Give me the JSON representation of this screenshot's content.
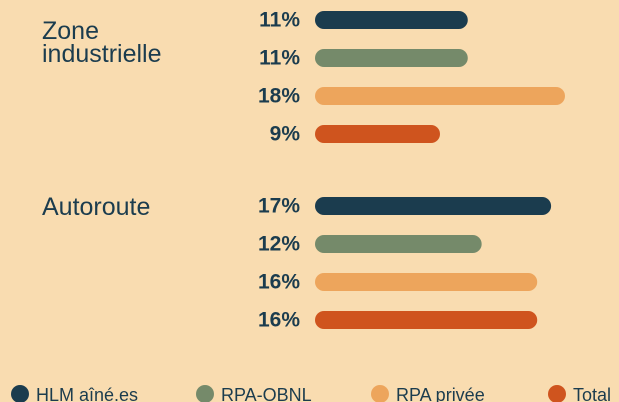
{
  "chart_data": {
    "type": "bar",
    "categories": [
      "Zone industrielle",
      "Autoroute"
    ],
    "series": [
      {
        "name": "HLM aîné.es",
        "color": "#1b3c4e",
        "values": [
          11,
          17
        ],
        "value_labels": [
          "11%",
          "17%"
        ]
      },
      {
        "name": "RPA-OBNL",
        "color": "#758a6a",
        "values": [
          11,
          12
        ],
        "value_labels": [
          "11%",
          "12%"
        ]
      },
      {
        "name": "RPA privée",
        "color": "#eda55c",
        "values": [
          18,
          16
        ],
        "value_labels": [
          "18%",
          "16%"
        ]
      },
      {
        "name": "Total",
        "color": "#cf541e",
        "values": [
          9,
          16
        ],
        "value_labels": [
          "9%",
          "16%"
        ]
      }
    ],
    "legend": "bottom"
  }
}
